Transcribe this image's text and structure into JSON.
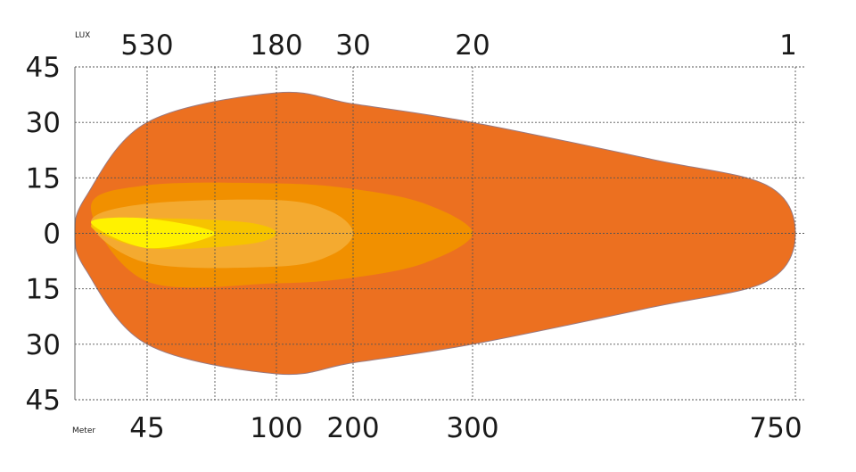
{
  "chart_data": {
    "type": "area",
    "title": "",
    "top_axis_label": "LUX",
    "bottom_axis_label": "Meter",
    "lux_ticks": [
      {
        "label": "530",
        "at": 45
      },
      {
        "label": "180",
        "at": 100
      },
      {
        "label": "30",
        "at": 200
      },
      {
        "label": "20",
        "at": 300
      },
      {
        "label": "1",
        "at": 750
      }
    ],
    "meter_ticks": [
      {
        "label": "45",
        "value": 45
      },
      {
        "label": "100",
        "value": 100
      },
      {
        "label": "200",
        "value": 200
      },
      {
        "label": "300",
        "value": 300
      },
      {
        "label": "750",
        "value": 750
      }
    ],
    "extra_vertical_gridline": 70,
    "y_ticks": [
      {
        "label": "45",
        "value": 45
      },
      {
        "label": "30",
        "value": 30
      },
      {
        "label": "15",
        "value": 15
      },
      {
        "label": "0",
        "value": 0
      },
      {
        "label": "15",
        "value": -15
      },
      {
        "label": "30",
        "value": -30
      },
      {
        "label": "45",
        "value": -45
      }
    ],
    "ylim": [
      -45,
      45
    ],
    "grid": true,
    "series": [
      {
        "lux": "1",
        "color": "#ec7020",
        "reach": 750,
        "upper": [
          [
            0,
            0
          ],
          [
            7,
            10
          ],
          [
            45,
            30
          ],
          [
            100,
            38
          ],
          [
            200,
            35
          ],
          [
            300,
            30
          ],
          [
            550,
            20
          ],
          [
            710,
            13
          ],
          [
            750,
            0
          ]
        ]
      },
      {
        "lux": "20",
        "color": "#f19000",
        "reach": 300,
        "upper": [
          [
            10,
            7
          ],
          [
            45,
            13
          ],
          [
            100,
            13.5
          ],
          [
            200,
            12
          ],
          [
            260,
            8
          ],
          [
            300,
            0
          ]
        ]
      },
      {
        "lux": "30",
        "color": "#f4aa30",
        "reach": 200,
        "upper": [
          [
            10,
            3
          ],
          [
            45,
            8
          ],
          [
            100,
            9
          ],
          [
            170,
            6
          ],
          [
            200,
            0
          ]
        ]
      },
      {
        "lux": "180",
        "color": "#f6c300",
        "reach": 100,
        "upper": [
          [
            10,
            2
          ],
          [
            45,
            4
          ],
          [
            85,
            3
          ],
          [
            100,
            0
          ]
        ]
      },
      {
        "lux": "530",
        "color": "#fff200",
        "reach": 70,
        "upper": [
          [
            10,
            3
          ],
          [
            45,
            4
          ],
          [
            70,
            0
          ]
        ]
      }
    ]
  }
}
